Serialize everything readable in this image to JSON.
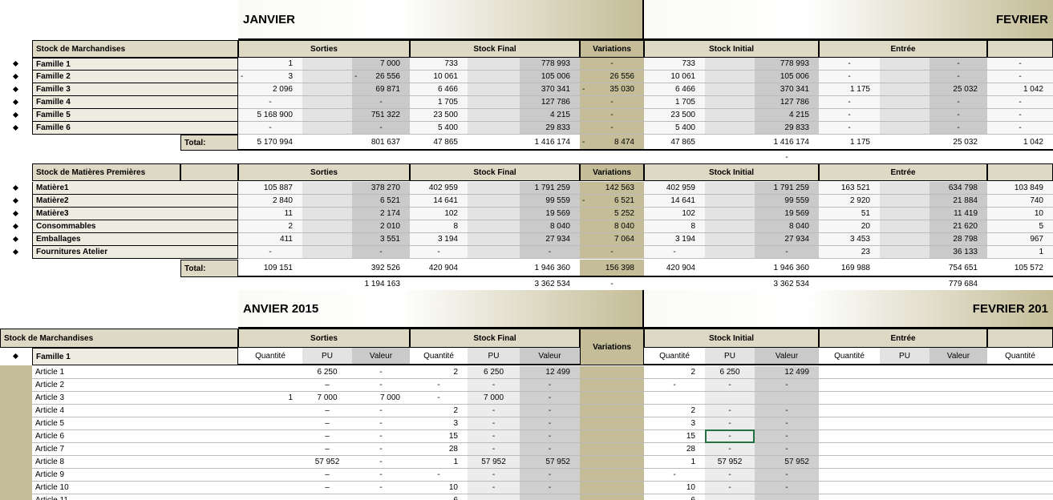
{
  "sheet": {
    "section1": {
      "months": [
        "JANVIER",
        "FEVRIER"
      ],
      "title": "Stock de Marchandises",
      "groups": [
        "Sorties",
        "Stock Final",
        "Variations",
        "Stock Initial",
        "Entrée"
      ],
      "rows": [
        {
          "label": "Famille 1",
          "cells": [
            "1",
            null,
            "7 000",
            "733",
            null,
            "778 993",
            "-",
            "733",
            null,
            "778 993",
            "-",
            null,
            "-",
            "-"
          ]
        },
        {
          "label": "Famille 2",
          "cells": [
            {
              "sign": "-",
              "value": "3"
            },
            null,
            {
              "sign": "-",
              "value": "26 556"
            },
            "10 061",
            null,
            "105 006",
            "26 556",
            "10 061",
            null,
            "105 006",
            "-",
            null,
            "-",
            "-"
          ]
        },
        {
          "label": "Famille 3",
          "cells": [
            "2 096",
            null,
            "69 871",
            "6 466",
            null,
            "370 341",
            {
              "sign": "-",
              "value": "35 030"
            },
            "6 466",
            null,
            "370 341",
            "1 175",
            null,
            "25 032",
            "1 042"
          ]
        },
        {
          "label": "Famille 4",
          "cells": [
            "-",
            null,
            "-",
            "1 705",
            null,
            "127 786",
            "-",
            "1 705",
            null,
            "127 786",
            "-",
            null,
            "-",
            "-"
          ]
        },
        {
          "label": "Famille 5",
          "cells": [
            "5 168 900",
            null,
            "751 322",
            "23 500",
            null,
            "4 215",
            "-",
            "23 500",
            null,
            "4 215",
            "-",
            null,
            "-",
            "-"
          ]
        },
        {
          "label": "Famille 6",
          "cells": [
            "-",
            null,
            "-",
            "5 400",
            null,
            "29 833",
            "-",
            "5 400",
            null,
            "29 833",
            "-",
            null,
            "-",
            "-"
          ]
        }
      ],
      "total": {
        "label": "Total:",
        "cells": [
          "5 170 994",
          null,
          "801 637",
          "47 865",
          null,
          "1 416 174",
          {
            "sign": "-",
            "value": "8 474"
          },
          "47 865",
          null,
          "1 416 174",
          "1 175",
          null,
          "25 032",
          "1 042"
        ]
      },
      "extra": [
        null,
        null,
        null,
        null,
        null,
        null,
        null,
        null,
        null,
        "-",
        null,
        null,
        null,
        null
      ]
    },
    "section2": {
      "title": "Stock de Matières Premières",
      "groups": [
        "Sorties",
        "Stock Final",
        "Variations",
        "Stock Initial",
        "Entrée"
      ],
      "rows": [
        {
          "label": "Matière1",
          "cells": [
            "105 887",
            null,
            "378 270",
            "402 959",
            null,
            "1 791 259",
            "142 563",
            "402 959",
            null,
            "1 791 259",
            "163 521",
            null,
            "634 798",
            "103 849"
          ]
        },
        {
          "label": "Matière2",
          "cells": [
            "2 840",
            null,
            "6 521",
            "14 641",
            null,
            "99 559",
            {
              "sign": "-",
              "value": "6 521"
            },
            "14 641",
            null,
            "99 559",
            "2 920",
            null,
            "21 884",
            "740"
          ]
        },
        {
          "label": "Matière3",
          "cells": [
            "11",
            null,
            "2 174",
            "102",
            null,
            "19 569",
            "5 252",
            "102",
            null,
            "19 569",
            "51",
            null,
            "11 419",
            "10"
          ]
        },
        {
          "label": "Consommables",
          "cells": [
            "2",
            null,
            "2 010",
            "8",
            null,
            "8 040",
            "8 040",
            "8",
            null,
            "8 040",
            "20",
            null,
            "21 620",
            "5"
          ]
        },
        {
          "label": "Emballages",
          "cells": [
            "411",
            null,
            "3 551",
            "3 194",
            null,
            "27 934",
            "7 064",
            "3 194",
            null,
            "27 934",
            "3 453",
            null,
            "28 798",
            "967"
          ]
        },
        {
          "label": "Fournitures Atelier",
          "cells": [
            "-",
            null,
            "-",
            "-",
            null,
            "-",
            "-",
            "-",
            null,
            "-",
            "23",
            null,
            "36 133",
            "1"
          ]
        }
      ],
      "total": {
        "label": "Total:",
        "cells": [
          "109 151",
          null,
          "392 526",
          "420 904",
          null,
          "1 946 360",
          "156 398",
          "420 904",
          null,
          "1 946 360",
          "169 988",
          null,
          "754 651",
          "105 572"
        ]
      },
      "summary": [
        null,
        null,
        "1 194 163",
        null,
        null,
        "3 362 534",
        "-",
        null,
        null,
        "3 362 534",
        null,
        null,
        "779 684",
        null
      ]
    },
    "section3": {
      "months": [
        "ANVIER 2015",
        "FEVRIER 201"
      ],
      "title": "Stock de Marchandises",
      "groups": [
        "Sorties",
        "Stock Final",
        "Variations",
        "Stock Initial",
        "Entrée"
      ],
      "family": "Famille 1",
      "subheaders": [
        "Quantité",
        "PU",
        "Valeur",
        "Quantité",
        "PU",
        "Valeur",
        null,
        "Quantité",
        "PU",
        "Valeur",
        "Quantité",
        "PU",
        "Valeur",
        "Quantité"
      ],
      "rows": [
        {
          "label": "Article 1",
          "cells": [
            null,
            "6 250",
            "-",
            "2",
            "6 250",
            "12 499",
            null,
            "2",
            "6 250",
            "12 499"
          ]
        },
        {
          "label": "Article 2",
          "cells": [
            null,
            "–",
            "-",
            "-",
            "-",
            "-",
            null,
            "-",
            "-",
            "-"
          ]
        },
        {
          "label": "Article 3",
          "cells": [
            "1",
            "7 000",
            "7 000",
            "-",
            "7 000",
            "-",
            null,
            null,
            null,
            null
          ]
        },
        {
          "label": "Article 4",
          "cells": [
            null,
            "–",
            "-",
            "2",
            "-",
            "-",
            null,
            "2",
            "-",
            "-"
          ]
        },
        {
          "label": "Article 5",
          "cells": [
            null,
            "–",
            "-",
            "3",
            "-",
            "-",
            null,
            "3",
            "-",
            "-"
          ]
        },
        {
          "label": "Article 6",
          "cells": [
            null,
            "–",
            "-",
            "15",
            "-",
            "-",
            null,
            "15",
            "-",
            "-"
          ]
        },
        {
          "label": "Article 7",
          "cells": [
            null,
            "–",
            "-",
            "28",
            "-",
            "-",
            null,
            "28",
            "-",
            "-"
          ]
        },
        {
          "label": "Article 8",
          "cells": [
            null,
            "57 952",
            "-",
            "1",
            "57 952",
            "57 952",
            null,
            "1",
            "57 952",
            "57 952"
          ]
        },
        {
          "label": "Article 9",
          "cells": [
            null,
            "–",
            "-",
            "-",
            "-",
            "-",
            null,
            "-",
            "-",
            "-"
          ]
        },
        {
          "label": "Article 10",
          "cells": [
            null,
            "–",
            "-",
            "10",
            "-",
            "-",
            null,
            "10",
            "-",
            "-"
          ]
        },
        {
          "label": "Article 11",
          "cells": [
            null,
            null,
            null,
            "6",
            null,
            null,
            null,
            "6",
            null,
            null
          ]
        }
      ]
    }
  }
}
